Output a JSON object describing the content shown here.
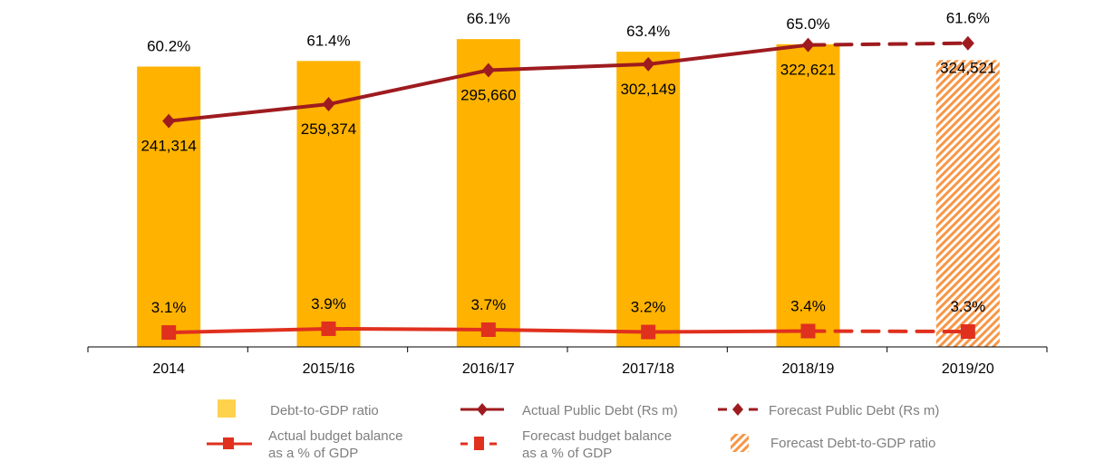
{
  "chart_data": {
    "type": "bar",
    "categories": [
      "2014",
      "2015/16",
      "2016/17",
      "2017/18",
      "2018/19",
      "2019/20"
    ],
    "series": [
      {
        "name": "Debt-to-GDP ratio",
        "kind": "bar",
        "axis": "percent",
        "values": [
          60.2,
          61.4,
          66.1,
          63.4,
          65.0,
          null
        ],
        "labels": [
          "60.2%",
          "61.4%",
          "66.1%",
          "63.4%",
          "65.0%",
          null
        ],
        "color": "#FFB300"
      },
      {
        "name": "Forecast Debt-to-GDP ratio",
        "kind": "bar-hatched",
        "axis": "percent",
        "values": [
          null,
          null,
          null,
          null,
          null,
          61.6
        ],
        "labels": [
          null,
          null,
          null,
          null,
          null,
          "61.6%"
        ],
        "color": "#F79646"
      },
      {
        "name": "Actual Public Debt (Rs m)",
        "kind": "line",
        "axis": "debt",
        "values": [
          241314,
          259374,
          295660,
          302149,
          322621,
          null
        ],
        "labels": [
          "241,314",
          "259,374",
          "295,660",
          "302,149",
          "322,621",
          null
        ],
        "color": "#9E1B1F"
      },
      {
        "name": "Forecast Public Debt (Rs m)",
        "kind": "line-dashed",
        "axis": "debt",
        "values": [
          null,
          null,
          null,
          null,
          322621,
          324521
        ],
        "labels": [
          null,
          null,
          null,
          null,
          null,
          "324,521"
        ],
        "color": "#9E1B1F"
      },
      {
        "name": "Actual budget balance as a % of GDP",
        "kind": "line",
        "axis": "percent",
        "values": [
          3.1,
          3.9,
          3.7,
          3.2,
          3.4,
          null
        ],
        "labels": [
          "3.1%",
          "3.9%",
          "3.7%",
          "3.2%",
          "3.4%",
          null
        ],
        "color": "#E0301E"
      },
      {
        "name": "Forecast budget balance as a % of GDP",
        "kind": "line-dashed",
        "axis": "percent",
        "values": [
          null,
          null,
          null,
          null,
          3.4,
          3.3
        ],
        "labels": [
          null,
          null,
          null,
          null,
          null,
          "3.3%"
        ],
        "color": "#E0301E"
      }
    ],
    "axes": {
      "percent": [
        0,
        74.5
      ],
      "debt": [
        0,
        370700
      ]
    },
    "title": "",
    "xlabel": "",
    "ylabel": "",
    "grid": false,
    "legend_placement": "bottom"
  },
  "legend": {
    "debt_ratio": "Debt-to-GDP ratio",
    "actual_debt": "Actual Public Debt (Rs m)",
    "forecast_debt": "Forecast Public Debt (Rs m)",
    "actual_balance_1": "Actual budget balance",
    "actual_balance_2": "as a % of GDP",
    "forecast_balance_1": "Forecast budget balance",
    "forecast_balance_2": "as a % of GDP",
    "forecast_ratio": "Forecast Debt-to-GDP ratio"
  }
}
